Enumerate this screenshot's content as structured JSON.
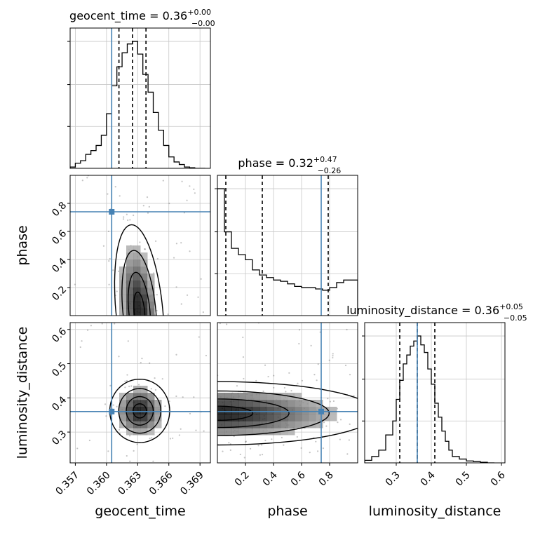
{
  "chart_data": {
    "type": "corner",
    "parameters": [
      "geocent_time",
      "phase",
      "luminosity_distance"
    ],
    "truths": {
      "geocent_time": 0.3605,
      "phase": 0.74,
      "luminosity_distance": 0.36
    },
    "colors": {
      "truth": "#4682b4",
      "hist": "#000000",
      "grid": "#c8c8c8",
      "quantile": "#000000"
    },
    "grid": true,
    "diagonal": [
      {
        "param": "geocent_time",
        "title": "geocent_time = 0.36",
        "title_plus": "+0.00",
        "title_minus": "−0.00",
        "xlim": [
          0.3565,
          0.37
        ],
        "ymax": 1.05,
        "bin_edges": [
          0.3565,
          0.357,
          0.3575,
          0.358,
          0.3585,
          0.359,
          0.3595,
          0.36,
          0.3605,
          0.361,
          0.3615,
          0.362,
          0.3625,
          0.363,
          0.3635,
          0.364,
          0.3645,
          0.365,
          0.3655,
          0.366,
          0.3665,
          0.367,
          0.3675,
          0.368,
          0.3685,
          0.369,
          0.3695
        ],
        "counts": [
          0.01,
          0.04,
          0.06,
          0.11,
          0.14,
          0.18,
          0.26,
          0.43,
          0.65,
          0.8,
          0.91,
          0.98,
          1.0,
          0.9,
          0.74,
          0.6,
          0.44,
          0.3,
          0.18,
          0.09,
          0.05,
          0.03,
          0.01,
          0.005,
          0.0,
          0.0
        ],
        "quantiles": [
          0.3612,
          0.3625,
          0.3638
        ],
        "ticks": [
          0.357,
          0.36,
          0.363,
          0.366,
          0.369
        ],
        "tick_labels": [
          "0.357",
          "0.360",
          "0.363",
          "0.366",
          "0.369"
        ],
        "xlabel": "geocent_time"
      },
      {
        "param": "phase",
        "title": "phase = 0.32",
        "title_plus": "+0.47",
        "title_minus": "−0.26",
        "xlim": [
          0.0,
          1.0
        ],
        "ymax": 1.05,
        "bin_edges": [
          0.0,
          0.05,
          0.1,
          0.15,
          0.2,
          0.25,
          0.3,
          0.35,
          0.4,
          0.45,
          0.5,
          0.55,
          0.6,
          0.65,
          0.7,
          0.75,
          0.8,
          0.85,
          0.9,
          0.95,
          1.0
        ],
        "counts": [
          1.0,
          0.66,
          0.53,
          0.48,
          0.44,
          0.36,
          0.32,
          0.3,
          0.28,
          0.27,
          0.25,
          0.23,
          0.22,
          0.22,
          0.21,
          0.2,
          0.22,
          0.26,
          0.28,
          0.28
        ],
        "quantiles": [
          0.06,
          0.32,
          0.79
        ],
        "ticks": [
          0.2,
          0.4,
          0.6,
          0.8
        ],
        "tick_labels": [
          "0.2",
          "0.4",
          "0.6",
          "0.8"
        ],
        "xlabel": "phase"
      },
      {
        "param": "luminosity_distance",
        "title": "luminosity_distance = 0.36",
        "title_plus": "+0.05",
        "title_minus": "−0.05",
        "xlim": [
          0.21,
          0.61
        ],
        "ymax": 1.05,
        "bin_edges": [
          0.21,
          0.23,
          0.25,
          0.27,
          0.29,
          0.3,
          0.31,
          0.32,
          0.33,
          0.34,
          0.35,
          0.36,
          0.37,
          0.38,
          0.39,
          0.4,
          0.41,
          0.42,
          0.43,
          0.44,
          0.45,
          0.46,
          0.48,
          0.5,
          0.52,
          0.54,
          0.56,
          0.58
        ],
        "counts": [
          0.02,
          0.05,
          0.1,
          0.22,
          0.33,
          0.5,
          0.65,
          0.78,
          0.85,
          0.92,
          0.96,
          1.0,
          0.93,
          0.87,
          0.74,
          0.62,
          0.47,
          0.36,
          0.25,
          0.17,
          0.1,
          0.05,
          0.03,
          0.015,
          0.01,
          0.005,
          0.0
        ],
        "quantiles": [
          0.31,
          0.36,
          0.41
        ],
        "ticks": [
          0.3,
          0.4,
          0.5,
          0.6
        ],
        "tick_labels": [
          "0.3",
          "0.4",
          "0.5",
          "0.6"
        ],
        "xlabel": "luminosity_distance"
      }
    ],
    "y_axes": [
      {
        "param": "phase",
        "ylim": [
          0.0,
          1.0
        ],
        "ticks": [
          0.2,
          0.4,
          0.6,
          0.8
        ],
        "tick_labels": [
          "0.2",
          "0.4",
          "0.6",
          "0.8"
        ],
        "ylabel": "phase"
      },
      {
        "param": "luminosity_distance",
        "ylim": [
          0.21,
          0.62
        ],
        "ticks": [
          0.3,
          0.4,
          0.5,
          0.6
        ],
        "tick_labels": [
          "0.3",
          "0.4",
          "0.5",
          "0.6"
        ],
        "ylabel": "luminosity_distance"
      }
    ],
    "joint": [
      {
        "x": "geocent_time",
        "y": "phase",
        "peak": [
          0.3632,
          0.03
        ],
        "sigma": [
          0.0011,
          0.3
        ],
        "skew": -0.0012
      },
      {
        "x": "geocent_time",
        "y": "luminosity_distance",
        "peak": [
          0.3632,
          0.362
        ],
        "sigma": [
          0.0014,
          0.045
        ],
        "skew": 0.0
      },
      {
        "x": "phase",
        "y": "luminosity_distance",
        "peak": [
          0.0,
          0.355
        ],
        "sigma": [
          0.55,
          0.045
        ],
        "skew": 0.0
      }
    ]
  }
}
